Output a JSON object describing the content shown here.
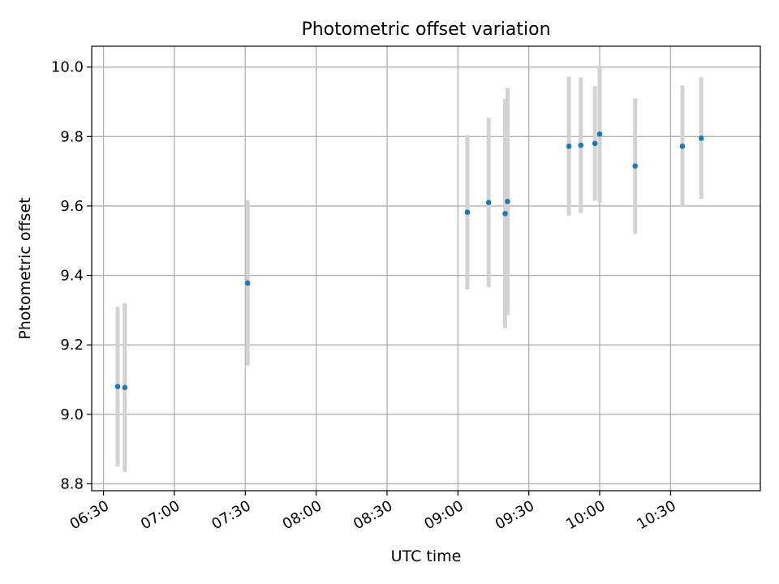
{
  "chart_data": {
    "type": "scatter",
    "title": "Photometric offset variation",
    "xlabel": "UTC time",
    "ylabel": "Photometric offset",
    "xlim": [
      "06:25",
      "11:08"
    ],
    "ylim": [
      8.78,
      10.06
    ],
    "grid": true,
    "legend": "none",
    "x_ticks": [
      "06:30",
      "07:00",
      "07:30",
      "08:00",
      "08:30",
      "09:00",
      "09:30",
      "10:00",
      "10:30"
    ],
    "y_ticks": [
      "8.8",
      "9.0",
      "9.2",
      "9.4",
      "9.6",
      "9.8",
      "10.0"
    ],
    "series": [
      {
        "points": [
          {
            "x": "06:36",
            "y": 9.08,
            "yerr": 0.23
          },
          {
            "x": "06:39",
            "y": 9.077,
            "yerr": 0.243
          },
          {
            "x": "07:31",
            "y": 9.378,
            "yerr": 0.238
          },
          {
            "x": "09:04",
            "y": 9.582,
            "yerr": 0.222
          },
          {
            "x": "09:13",
            "y": 9.61,
            "yerr": 0.244
          },
          {
            "x": "09:20",
            "y": 9.578,
            "yerr": 0.33
          },
          {
            "x": "09:21",
            "y": 9.613,
            "yerr": 0.327
          },
          {
            "x": "09:47",
            "y": 9.772,
            "yerr": 0.2
          },
          {
            "x": "09:52",
            "y": 9.775,
            "yerr": 0.195
          },
          {
            "x": "09:58",
            "y": 9.78,
            "yerr": 0.165
          },
          {
            "x": "10:00",
            "y": 9.807,
            "yerr": 0.197
          },
          {
            "x": "10:15",
            "y": 9.715,
            "yerr": 0.195
          },
          {
            "x": "10:35",
            "y": 9.772,
            "yerr": 0.175
          },
          {
            "x": "10:43",
            "y": 9.795,
            "yerr": 0.175
          }
        ]
      }
    ]
  },
  "colors": {
    "marker": "#1f77b4",
    "errorbar": "#d3d3d3",
    "grid": "#b0b0b0",
    "axis": "#000000"
  }
}
